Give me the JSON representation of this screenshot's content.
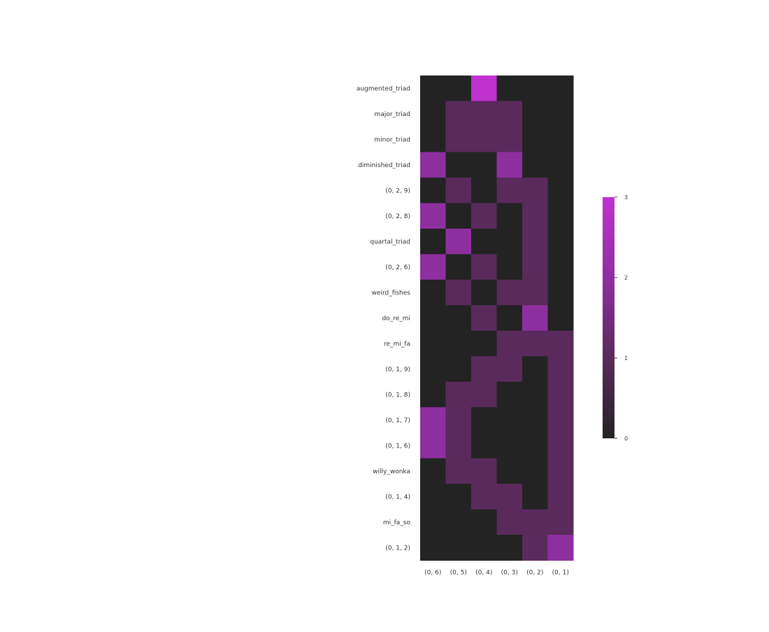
{
  "chart_data": {
    "type": "heatmap",
    "title": "",
    "xlabel": "",
    "ylabel": "",
    "columns": [
      "(0, 6)",
      "(0, 5)",
      "(0, 4)",
      "(0, 3)",
      "(0, 2)",
      "(0, 1)"
    ],
    "rows": [
      "augmented_triad",
      "major_triad",
      "minor_triad",
      "diminished_triad",
      "(0, 2, 9)",
      "(0, 2, 8)",
      "quartal_triad",
      "(0, 2, 6)",
      "weird_fishes",
      "do_re_mi",
      "re_mi_fa",
      "(0, 1, 9)",
      "(0, 1, 8)",
      "(0, 1, 7)",
      "(0, 1, 6)",
      "willy_wonka",
      "(0, 1, 4)",
      "mi_fa_so",
      "(0, 1, 2)"
    ],
    "values": [
      [
        0,
        0,
        3,
        0,
        0,
        0
      ],
      [
        0,
        1,
        1,
        1,
        0,
        0
      ],
      [
        0,
        1,
        1,
        1,
        0,
        0
      ],
      [
        2,
        0,
        0,
        2,
        0,
        0
      ],
      [
        0,
        1,
        0,
        1,
        1,
        0
      ],
      [
        2,
        0,
        1,
        0,
        1,
        0
      ],
      [
        0,
        2,
        0,
        0,
        1,
        0
      ],
      [
        2,
        0,
        1,
        0,
        1,
        0
      ],
      [
        0,
        1,
        0,
        1,
        1,
        0
      ],
      [
        0,
        0,
        1,
        0,
        2,
        0
      ],
      [
        0,
        0,
        0,
        1,
        1,
        1
      ],
      [
        0,
        0,
        1,
        1,
        0,
        1
      ],
      [
        0,
        1,
        1,
        0,
        0,
        1
      ],
      [
        2,
        1,
        0,
        0,
        0,
        1
      ],
      [
        2,
        1,
        0,
        0,
        0,
        1
      ],
      [
        0,
        1,
        1,
        0,
        0,
        1
      ],
      [
        0,
        0,
        1,
        1,
        0,
        1
      ],
      [
        0,
        0,
        0,
        1,
        1,
        1
      ],
      [
        0,
        0,
        0,
        0,
        1,
        2
      ]
    ],
    "colorbar": {
      "min": 0,
      "max": 3,
      "ticks": [
        0,
        1,
        2,
        3
      ],
      "colors": [
        "#232323",
        "#5a2a5c",
        "#8e2fa0",
        "#c032d0"
      ]
    }
  }
}
